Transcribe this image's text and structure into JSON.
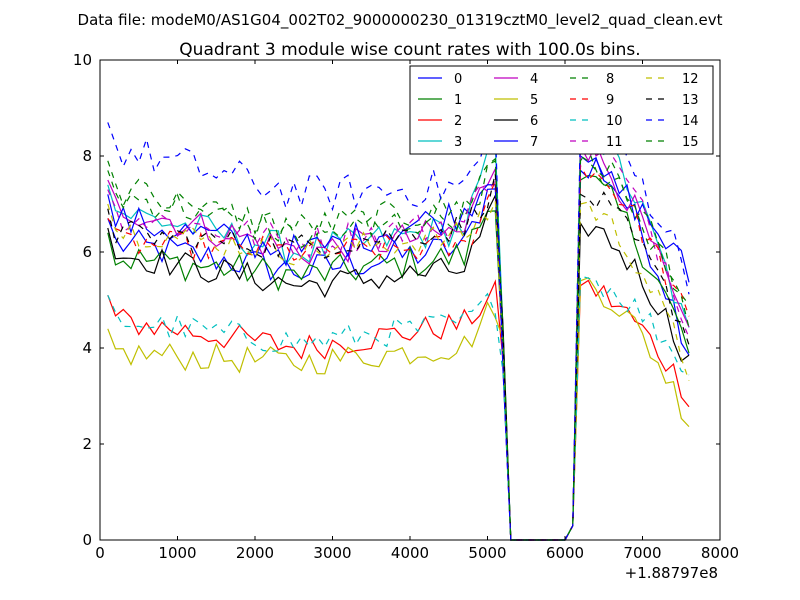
{
  "suptitle": "Data file: modeM0/AS1G04_002T02_9000000230_01319cztM0_level2_quad_clean.evt",
  "chart_data": {
    "type": "line",
    "title": "Quadrant 3 module wise count rates with 100.0s bins.",
    "xlabel": "",
    "ylabel": "",
    "x_offset_label": "+1.88797e8",
    "xlim": [
      0,
      8000
    ],
    "ylim": [
      0,
      10
    ],
    "xticks": [
      0,
      1000,
      2000,
      3000,
      4000,
      5000,
      6000,
      7000,
      8000
    ],
    "yticks": [
      0,
      2,
      4,
      6,
      8,
      10
    ],
    "grid": false,
    "legend_position": "top-right",
    "legend_columns": 4,
    "gap_start": 5200,
    "gap_end": 6000,
    "x_first_segment": {
      "start": 100,
      "end": 5100,
      "step": 100
    },
    "x_second_segment": {
      "start": 6100,
      "end": 7600,
      "step": 100
    },
    "series": [
      {
        "name": "0",
        "color": "#0000ff",
        "style": "solid",
        "level_early": 6.2,
        "level_mid": 5.6,
        "level_late": 6.2,
        "peak": 7.6,
        "post_peak": 8.0,
        "post_end": 4.0,
        "noise": 0.35
      },
      {
        "name": "1",
        "color": "#008000",
        "style": "solid",
        "level_early": 5.9,
        "level_mid": 5.5,
        "level_late": 6.0,
        "peak": 7.2,
        "post_peak": 7.5,
        "post_end": 3.9,
        "noise": 0.35
      },
      {
        "name": "2",
        "color": "#ff0000",
        "style": "solid",
        "level_early": 4.6,
        "level_mid": 4.0,
        "level_late": 4.6,
        "peak": 5.1,
        "post_peak": 5.3,
        "post_end": 3.0,
        "noise": 0.3
      },
      {
        "name": "3",
        "color": "#00bfbf",
        "style": "solid",
        "level_early": 6.9,
        "level_mid": 6.0,
        "level_late": 6.6,
        "peak": 8.2,
        "post_peak": 8.6,
        "post_end": 4.2,
        "noise": 0.35
      },
      {
        "name": "4",
        "color": "#bf00bf",
        "style": "solid",
        "level_early": 7.0,
        "level_mid": 6.0,
        "level_late": 6.5,
        "peak": 7.9,
        "post_peak": 8.2,
        "post_end": 4.1,
        "noise": 0.35
      },
      {
        "name": "5",
        "color": "#bfbf00",
        "style": "solid",
        "level_early": 3.9,
        "level_mid": 3.7,
        "level_late": 4.1,
        "peak": 4.9,
        "post_peak": 5.4,
        "post_end": 2.5,
        "noise": 0.3
      },
      {
        "name": "6",
        "color": "#000000",
        "style": "solid",
        "level_early": 6.0,
        "level_mid": 5.3,
        "level_late": 5.7,
        "peak": 6.9,
        "post_peak": 6.6,
        "post_end": 3.7,
        "noise": 0.3
      },
      {
        "name": "7",
        "color": "#0000ff",
        "style": "solid",
        "level_early": 6.7,
        "level_mid": 6.0,
        "level_late": 7.0,
        "peak": 7.7,
        "post_peak": 7.7,
        "post_end": 5.5,
        "noise": 0.35
      },
      {
        "name": "8",
        "color": "#008000",
        "style": "dashed",
        "level_early": 7.2,
        "level_mid": 6.5,
        "level_late": 7.0,
        "peak": 8.0,
        "post_peak": 8.0,
        "post_end": 4.9,
        "noise": 0.35
      },
      {
        "name": "9",
        "color": "#ff0000",
        "style": "dashed",
        "level_early": 6.2,
        "level_mid": 6.0,
        "level_late": 6.1,
        "peak": 7.4,
        "post_peak": 7.8,
        "post_end": 4.5,
        "noise": 0.3
      },
      {
        "name": "10",
        "color": "#00bfbf",
        "style": "dashed",
        "level_early": 4.6,
        "level_mid": 4.1,
        "level_late": 4.6,
        "peak": 5.0,
        "post_peak": 5.5,
        "post_end": 3.5,
        "noise": 0.3
      },
      {
        "name": "11",
        "color": "#bf00bf",
        "style": "dashed",
        "level_early": 6.8,
        "level_mid": 6.2,
        "level_late": 6.7,
        "peak": 7.8,
        "post_peak": 8.4,
        "post_end": 4.5,
        "noise": 0.35
      },
      {
        "name": "12",
        "color": "#bfbf00",
        "style": "dashed",
        "level_early": 6.5,
        "level_mid": 6.0,
        "level_late": 6.4,
        "peak": 7.0,
        "post_peak": 7.0,
        "post_end": 3.5,
        "noise": 0.3
      },
      {
        "name": "13",
        "color": "#000000",
        "style": "dashed",
        "level_early": 6.4,
        "level_mid": 6.1,
        "level_late": 6.6,
        "peak": 7.4,
        "post_peak": 7.2,
        "post_end": 4.2,
        "noise": 0.3
      },
      {
        "name": "14",
        "color": "#0000ff",
        "style": "dashed",
        "level_early": 8.2,
        "level_mid": 7.2,
        "level_late": 7.4,
        "peak": 8.5,
        "post_peak": 8.7,
        "post_end": 5.5,
        "noise": 0.4
      },
      {
        "name": "15",
        "color": "#008000",
        "style": "dashed",
        "level_early": 7.4,
        "level_mid": 6.3,
        "level_late": 6.9,
        "peak": 7.8,
        "post_peak": 7.9,
        "post_end": 4.6,
        "noise": 0.35
      }
    ]
  }
}
